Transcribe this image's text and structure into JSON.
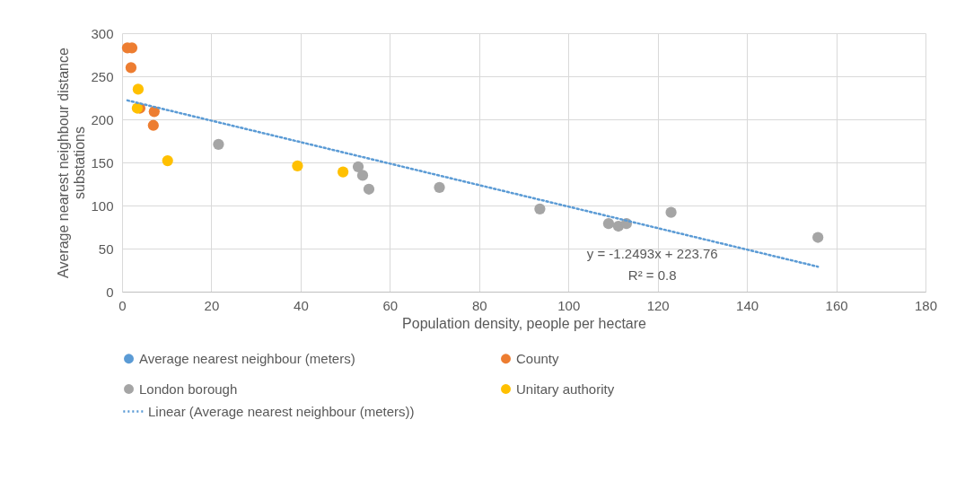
{
  "chart_data": {
    "type": "scatter",
    "xlabel": "Population density, people per hectare",
    "ylabel": "Average nearest neighbour distance substations",
    "xlim": [
      0,
      180
    ],
    "xticks": [
      0,
      20,
      40,
      60,
      80,
      100,
      120,
      140,
      160,
      180
    ],
    "ylim": [
      0,
      300
    ],
    "yticks": [
      0,
      50,
      100,
      150,
      200,
      250,
      300
    ],
    "grid": true,
    "legend": "bottom",
    "marker": "circle",
    "annotations": [
      "y = -1.2493x + 223.76",
      "R² = 0.8"
    ],
    "series": [
      {
        "name": "Average nearest neighbour (meters)",
        "color": "#5b9bd5"
      },
      {
        "name": "County",
        "color": "#ed7d31",
        "x": [
          1.2,
          2.2,
          2,
          4,
          7.2,
          7
        ],
        "values": [
          283,
          283,
          260,
          213,
          209,
          193
        ]
      },
      {
        "name": "London borough",
        "color": "#a5a5a5",
        "x": [
          21.6,
          52.9,
          53.9,
          55.3,
          71.1,
          93.6,
          109,
          111.2,
          113,
          123,
          155.9
        ],
        "values": [
          171,
          145,
          135,
          119,
          121,
          96,
          79,
          76,
          79,
          92,
          63
        ]
      },
      {
        "name": "Unitary authority",
        "color": "#ffc000",
        "x": [
          3.6,
          3.4,
          10.2,
          39.3,
          49.5
        ],
        "values": [
          235,
          213,
          152,
          146,
          139
        ]
      },
      {
        "name": "Linear (Average nearest neighbour (meters))",
        "type": "line",
        "line_style": "dotted",
        "marker": "none",
        "color": "#5b9bd5",
        "x": [
          1.2,
          155.9
        ],
        "values": [
          222,
          29
        ]
      }
    ]
  }
}
